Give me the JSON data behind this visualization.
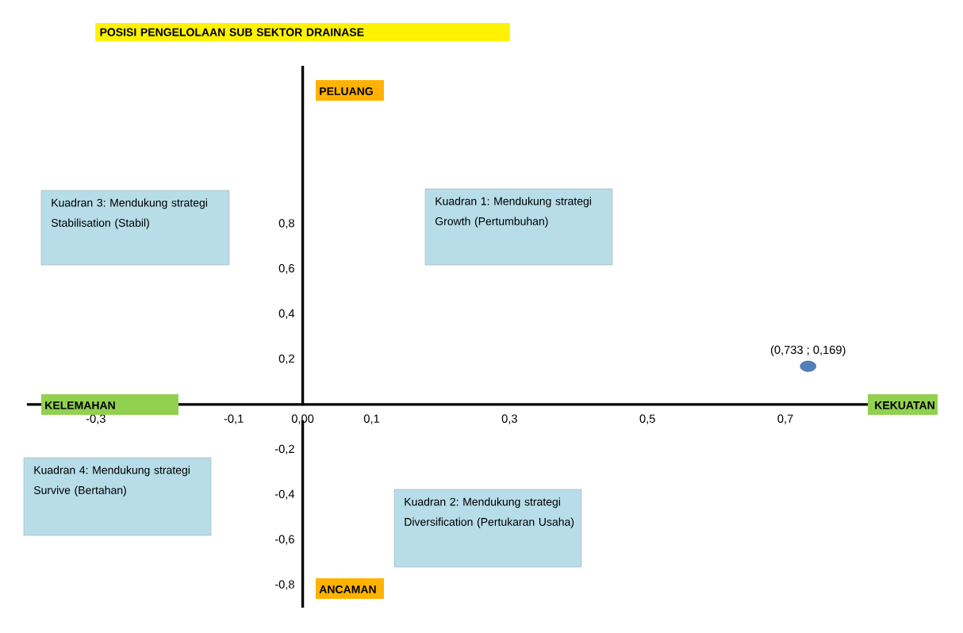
{
  "chart_data": {
    "type": "scatter",
    "title": "POSISI PENGELOLAAN SUB SEKTOR DRAINASE",
    "x": [
      0.733
    ],
    "values": [
      0.169
    ],
    "value_labels": [
      "(0,733 ; 0,169)"
    ],
    "color": "#4f81bd",
    "marker": "circle",
    "xlim": [
      -0.4,
      0.9
    ],
    "ylim": [
      -0.9,
      1.5
    ],
    "xticks": [
      {
        "value": -0.3,
        "label": "-0,3"
      },
      {
        "value": -0.1,
        "label": "-0,1"
      },
      {
        "value": 0,
        "label": "0,00"
      },
      {
        "value": 0.1,
        "label": "0,1"
      },
      {
        "value": 0.3,
        "label": "0,3"
      },
      {
        "value": 0.5,
        "label": "0,5"
      },
      {
        "value": 0.7,
        "label": "0,7"
      }
    ],
    "yticks": [
      {
        "value": -0.8,
        "label": "-0,8"
      },
      {
        "value": -0.6,
        "label": "-0,6"
      },
      {
        "value": -0.4,
        "label": "-0,4"
      },
      {
        "value": -0.2,
        "label": "-0,2"
      },
      {
        "value": 0.2,
        "label": "0,2"
      },
      {
        "value": 0.4,
        "label": "0,4"
      },
      {
        "value": 0.6,
        "label": "0,6"
      },
      {
        "value": 0.8,
        "label": "0,8"
      }
    ],
    "annotations": [
      "Kuadran 3: Mendukung strategi Stabilisation (Stabil)",
      "Kuadran 1: Mendukung strategi Growth (Pertumbuhan)",
      "Kuadran 4: Mendukung strategi Survive (Bertahan)",
      "Kuadran 2: Mendukung strategi Diversification (Pertukaran Usaha)",
      "PELUANG",
      "ANCAMAN",
      "KELEMAHAN",
      "KEKUATAN"
    ]
  }
}
